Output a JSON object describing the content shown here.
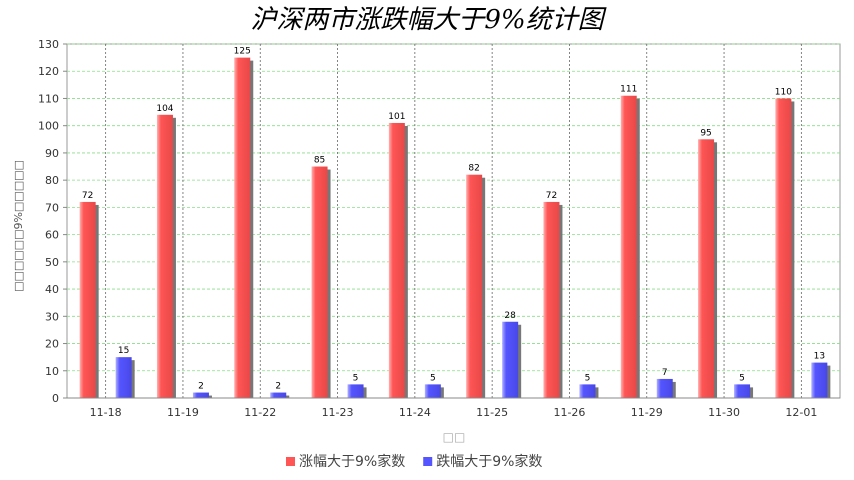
{
  "chart_data": {
    "type": "bar",
    "title": "沪深两市涨跌幅大于9%统计图",
    "xlabel": "□□",
    "ylabel": "□□□□□□9%□□□□□",
    "categories": [
      "11-18",
      "11-19",
      "11-22",
      "11-23",
      "11-24",
      "11-25",
      "11-26",
      "11-29",
      "11-30",
      "12-01"
    ],
    "series": [
      {
        "name": "涨幅大于9%家数",
        "color": "#ff5555",
        "values": [
          72,
          104,
          125,
          85,
          101,
          82,
          72,
          111,
          95,
          110
        ]
      },
      {
        "name": "跌幅大于9%家数",
        "color": "#5555ff",
        "values": [
          15,
          2,
          2,
          5,
          5,
          28,
          5,
          7,
          5,
          13
        ]
      }
    ],
    "ylim": [
      0,
      130
    ],
    "ytick_step": 10,
    "grid": true,
    "legend_position": "bottom"
  }
}
